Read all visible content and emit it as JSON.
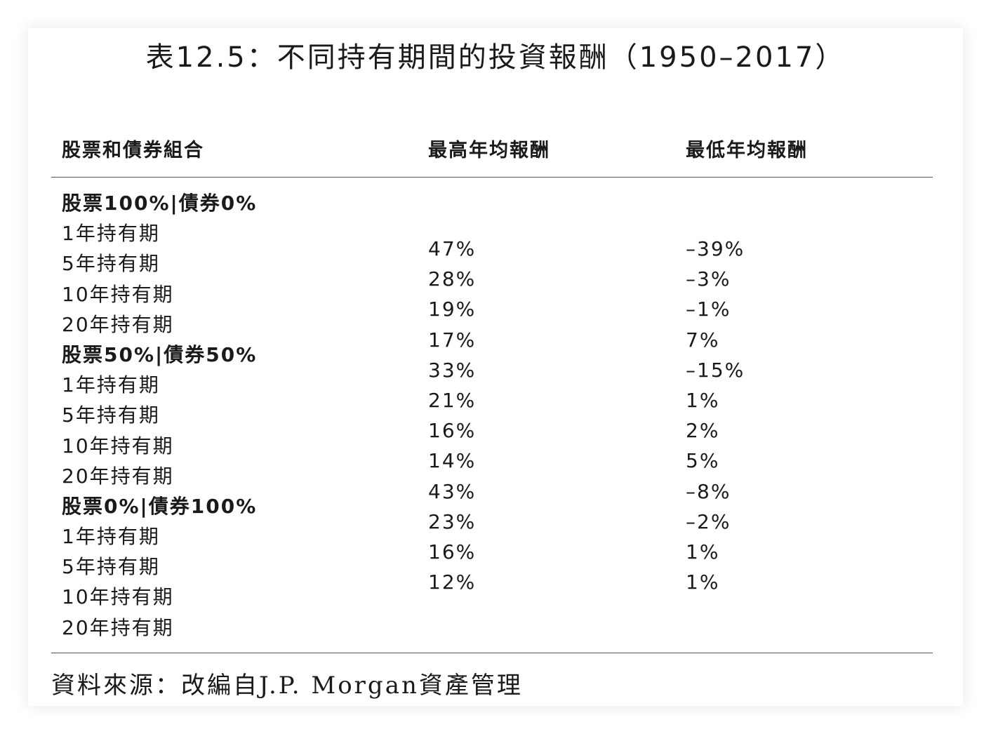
{
  "title": "表12.5：不同持有期間的投資報酬（1950–2017）",
  "headers": {
    "col1": "股票和債券組合",
    "col2": "最高年均報酬",
    "col3": "最低年均報酬"
  },
  "rows": [
    {
      "label": "股票100%|債券0%",
      "group": true
    },
    {
      "label": "1年持有期",
      "group": false
    },
    {
      "label": "5年持有期",
      "group": false
    },
    {
      "label": "10年持有期",
      "group": false
    },
    {
      "label": "20年持有期",
      "group": false
    },
    {
      "label": "股票50%|債券50%",
      "group": true
    },
    {
      "label": "1年持有期",
      "group": false
    },
    {
      "label": "5年持有期",
      "group": false
    },
    {
      "label": "10年持有期",
      "group": false
    },
    {
      "label": "20年持有期",
      "group": false
    },
    {
      "label": "股票0%|債券100%",
      "group": true
    },
    {
      "label": "1年持有期",
      "group": false
    },
    {
      "label": "5年持有期",
      "group": false
    },
    {
      "label": "10年持有期",
      "group": false
    },
    {
      "label": "20年持有期",
      "group": false
    }
  ],
  "highest": [
    "47%",
    "28%",
    "19%",
    "17%",
    "33%",
    "21%",
    "16%",
    "14%",
    "43%",
    "23%",
    "16%",
    "12%"
  ],
  "lowest": [
    "–39%",
    "–3%",
    "–1%",
    "7%",
    "–15%",
    "1%",
    "2%",
    "5%",
    "–8%",
    "–2%",
    "1%",
    "1%"
  ],
  "source": "資料來源：改編自J.P. Morgan資產管理"
}
